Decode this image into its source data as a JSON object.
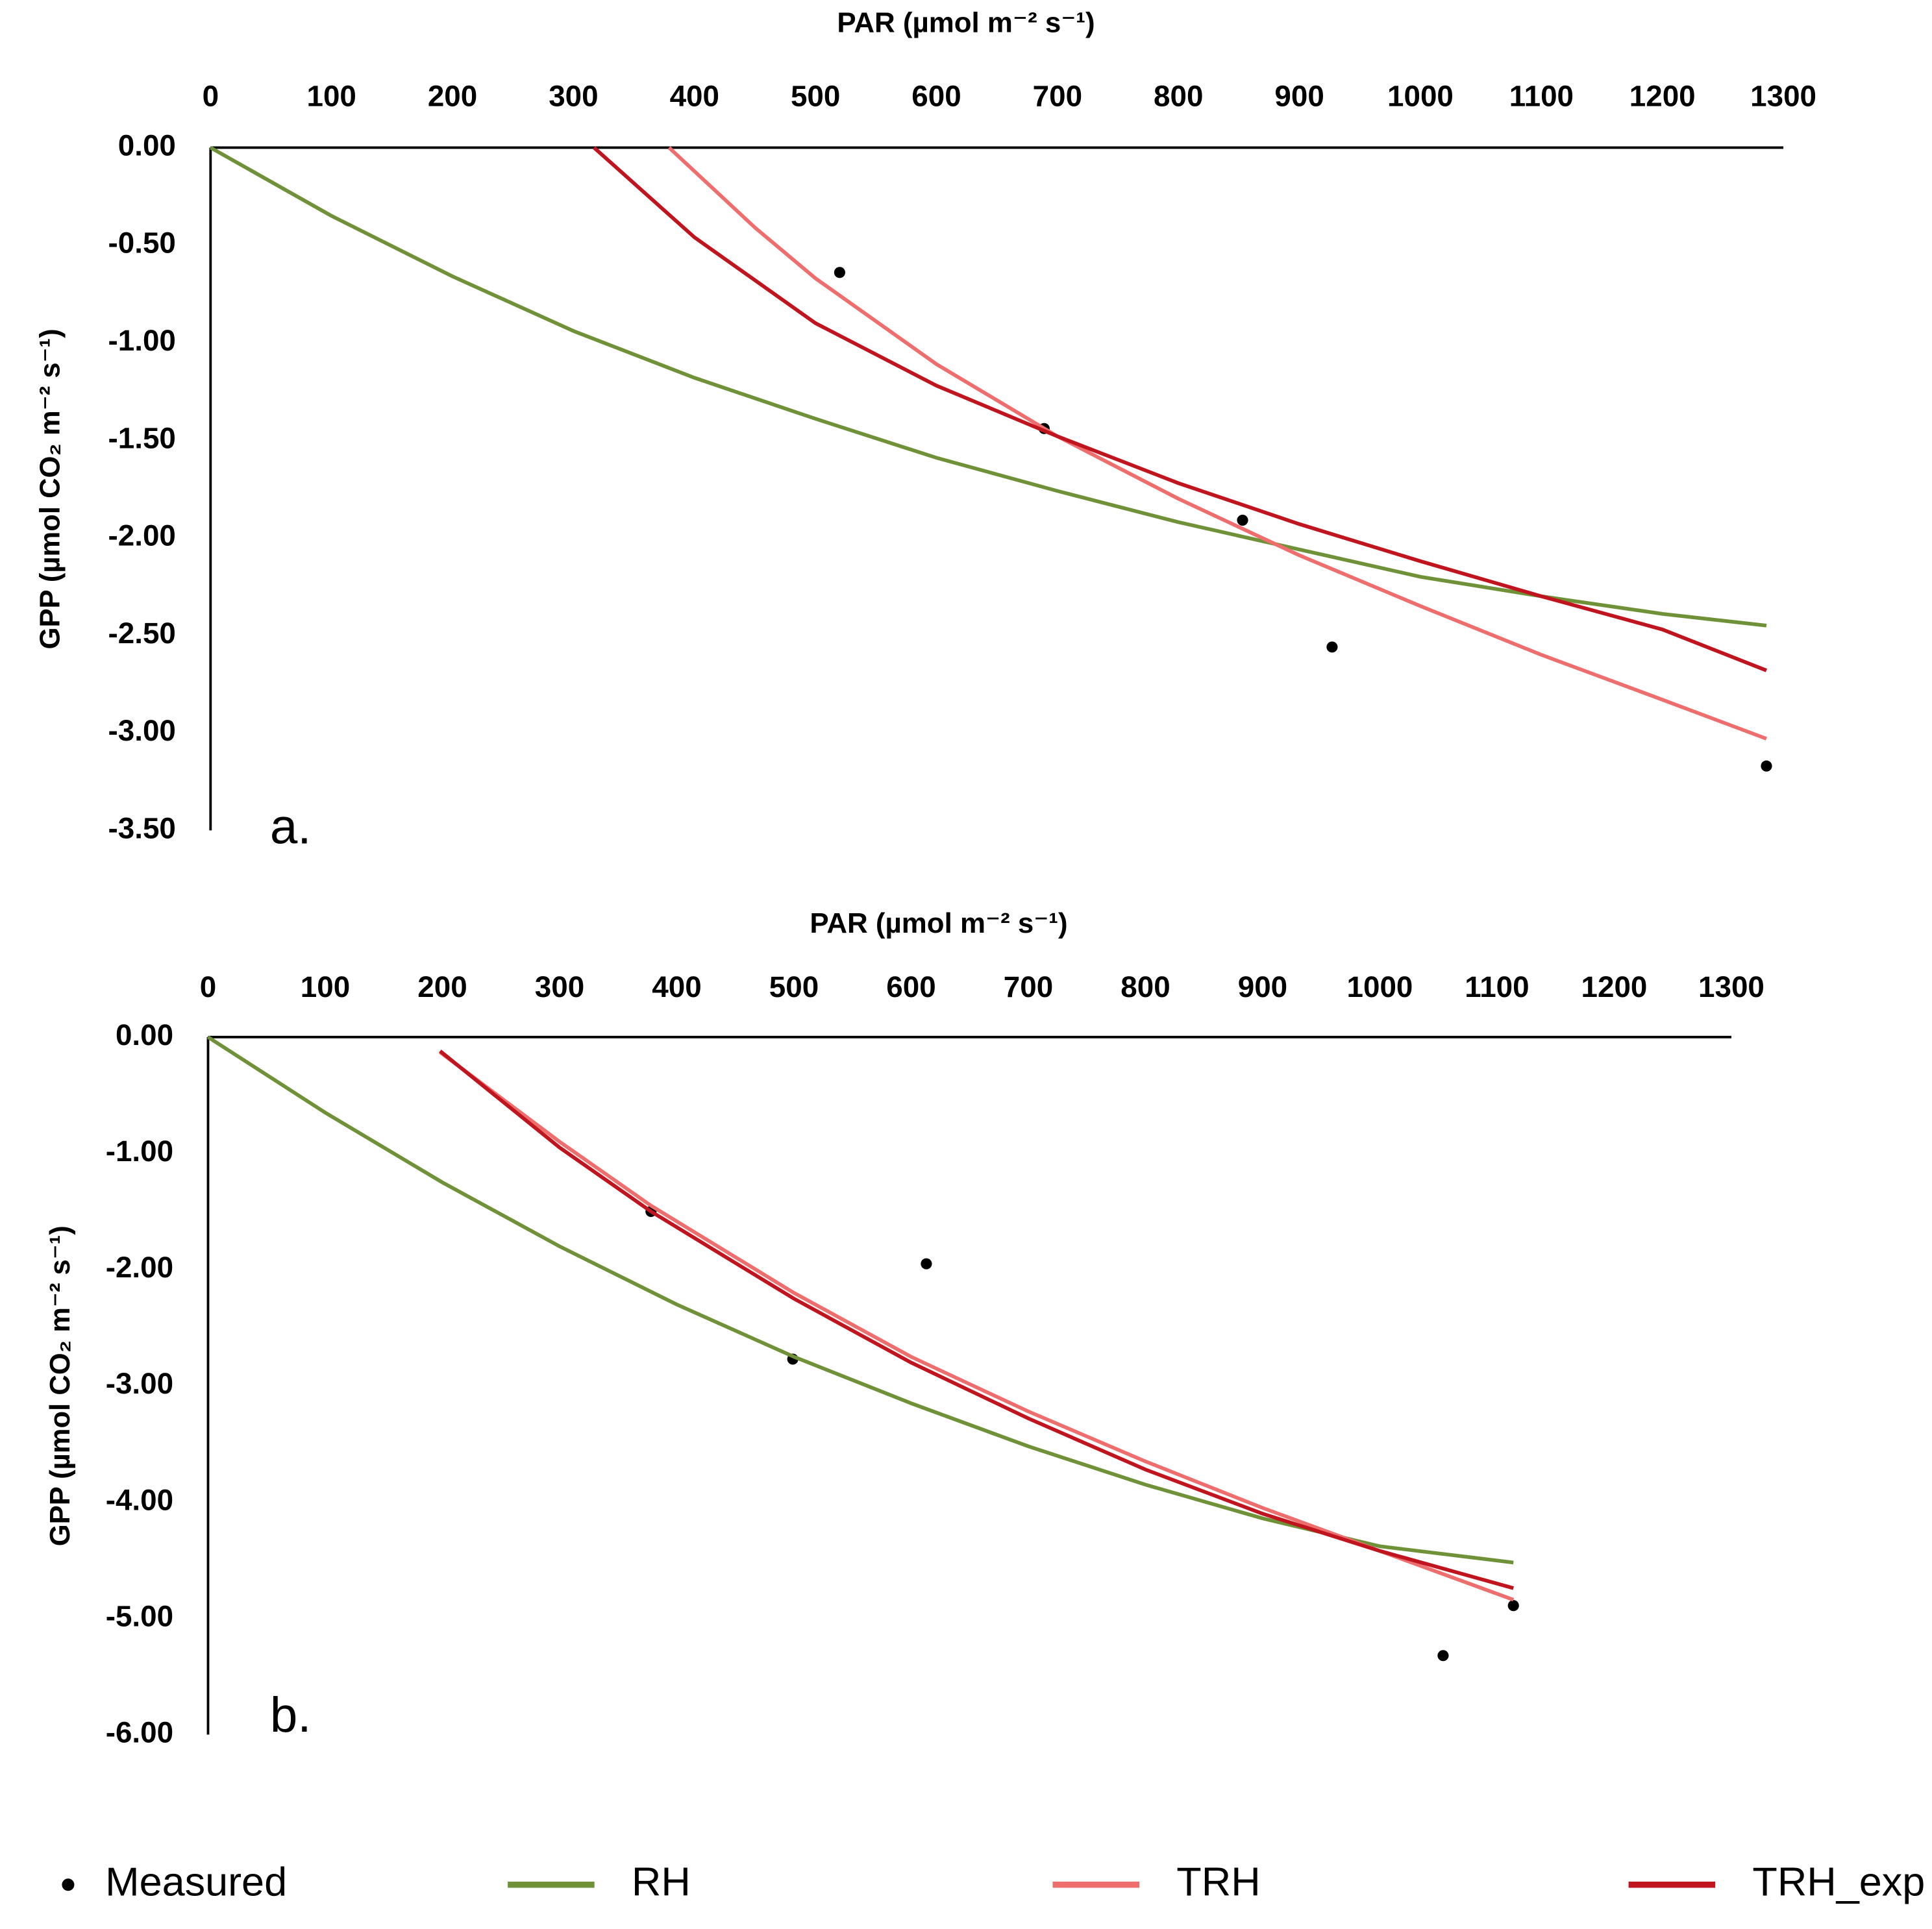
{
  "chart_data": [
    {
      "type": "line",
      "panel_label": "a.",
      "x_title": "PAR (µmol m⁻² s⁻¹)",
      "y_title": "GPP (µmol CO₂ m⁻² s⁻¹)",
      "xlim": [
        0,
        1300
      ],
      "xticks": [
        0,
        100,
        200,
        300,
        400,
        500,
        600,
        700,
        800,
        900,
        1000,
        1100,
        1200,
        1300
      ],
      "ylim": [
        -3.5,
        0
      ],
      "yticks": [
        {
          "value": 0,
          "label": "0.00"
        },
        {
          "value": -0.5,
          "label": "-0.50"
        },
        {
          "value": -1,
          "label": "-1.00"
        },
        {
          "value": -1.5,
          "label": "-1.50"
        },
        {
          "value": -2,
          "label": "-2.00"
        },
        {
          "value": -2.5,
          "label": "-2.50"
        },
        {
          "value": -3,
          "label": "-3.00"
        },
        {
          "value": -3.5,
          "label": "-3.50"
        }
      ],
      "series": [
        {
          "name": "Measured",
          "type": "scatter",
          "color": "#000000",
          "x": [
            520,
            689,
            853,
            927,
            1286
          ],
          "values": [
            -0.64,
            -1.44,
            -1.91,
            -2.56,
            -3.17
          ]
        },
        {
          "name": "RH",
          "type": "line",
          "color": "#6f9137",
          "x": [
            0,
            100,
            200,
            300,
            400,
            500,
            600,
            700,
            800,
            900,
            1000,
            1100,
            1200,
            1286
          ],
          "values": [
            0,
            -0.35,
            -0.66,
            -0.94,
            -1.18,
            -1.39,
            -1.59,
            -1.76,
            -1.92,
            -2.06,
            -2.2,
            -2.3,
            -2.39,
            -2.45
          ]
        },
        {
          "name": "TRH",
          "type": "line",
          "color": "#ee6e6e",
          "x": [
            379,
            450,
            500,
            600,
            700,
            800,
            900,
            1000,
            1100,
            1200,
            1286
          ],
          "values": [
            0,
            -0.41,
            -0.67,
            -1.11,
            -1.48,
            -1.8,
            -2.09,
            -2.35,
            -2.6,
            -2.83,
            -3.03
          ]
        },
        {
          "name": "TRH_exp",
          "type": "line",
          "color": "#c0141e",
          "x": [
            317,
            400,
            500,
            600,
            700,
            800,
            900,
            1000,
            1100,
            1200,
            1286
          ],
          "values": [
            0,
            -0.46,
            -0.9,
            -1.22,
            -1.48,
            -1.72,
            -1.93,
            -2.12,
            -2.3,
            -2.47,
            -2.68
          ]
        }
      ]
    },
    {
      "type": "line",
      "panel_label": "b.",
      "x_title": "PAR (µmol m⁻² s⁻¹)",
      "y_title": "GPP (µmol CO₂ m⁻² s⁻¹)",
      "xlim": [
        0,
        1300
      ],
      "xticks": [
        0,
        100,
        200,
        300,
        400,
        500,
        600,
        700,
        800,
        900,
        1000,
        1100,
        1200,
        1300
      ],
      "ylim": [
        -6,
        0
      ],
      "yticks": [
        {
          "value": 0,
          "label": "0.00"
        },
        {
          "value": -1,
          "label": "-1.00"
        },
        {
          "value": -2,
          "label": "-2.00"
        },
        {
          "value": -3,
          "label": "-3.00"
        },
        {
          "value": -4,
          "label": "-4.00"
        },
        {
          "value": -5,
          "label": "-5.00"
        },
        {
          "value": -6,
          "label": "-6.00"
        }
      ],
      "series": [
        {
          "name": "Measured",
          "type": "scatter",
          "color": "#000000",
          "x": [
            378,
            499,
            613,
            1054,
            1114
          ],
          "values": [
            -1.5,
            -2.77,
            -1.95,
            -5.32,
            -4.89
          ]
        },
        {
          "name": "RH",
          "type": "line",
          "color": "#6f9137",
          "x": [
            0,
            100,
            200,
            300,
            400,
            500,
            600,
            700,
            800,
            900,
            1000,
            1114
          ],
          "values": [
            0,
            -0.65,
            -1.25,
            -1.8,
            -2.3,
            -2.75,
            -3.15,
            -3.52,
            -3.85,
            -4.14,
            -4.38,
            -4.52
          ]
        },
        {
          "name": "TRH",
          "type": "line",
          "color": "#ee6e6e",
          "x": [
            198,
            300,
            378,
            500,
            600,
            700,
            800,
            900,
            1000,
            1114
          ],
          "values": [
            -0.13,
            -0.9,
            -1.45,
            -2.2,
            -2.75,
            -3.22,
            -3.65,
            -4.05,
            -4.42,
            -4.84
          ]
        },
        {
          "name": "TRH_exp",
          "type": "line",
          "color": "#c0141e",
          "x": [
            198,
            300,
            378,
            500,
            600,
            700,
            800,
            900,
            1000,
            1114
          ],
          "values": [
            -0.12,
            -0.95,
            -1.5,
            -2.25,
            -2.8,
            -3.28,
            -3.72,
            -4.1,
            -4.42,
            -4.74
          ]
        }
      ]
    }
  ]
}
